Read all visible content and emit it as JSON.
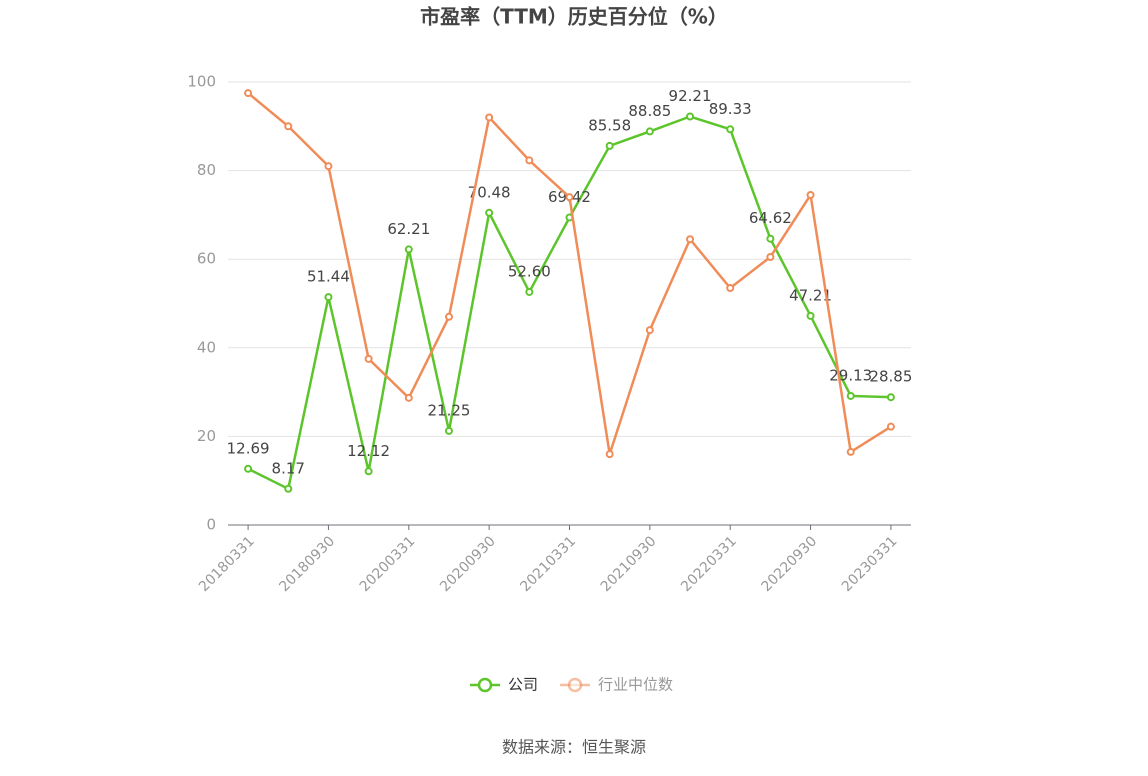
{
  "chart_data": {
    "type": "line",
    "title": "市盈率（TTM）历史百分位（%）",
    "categories": [
      "20180331",
      null,
      "20180930",
      null,
      "20200331",
      null,
      "20200930",
      null,
      "20210331",
      null,
      "20210930",
      null,
      "20220331",
      null,
      "20220930",
      null,
      "20230331"
    ],
    "series": [
      {
        "name": "公司",
        "color": "#5dc52c",
        "values": [
          12.69,
          8.17,
          51.44,
          12.12,
          62.21,
          21.25,
          70.48,
          52.6,
          69.42,
          85.58,
          88.85,
          92.21,
          89.33,
          64.62,
          47.21,
          29.13,
          28.85
        ],
        "value_labels": [
          "12.69",
          "8.17",
          "51.44",
          "12.12",
          "62.21",
          "21.25",
          "70.48",
          "52.60",
          "69.42",
          "85.58",
          "88.85",
          "92.21",
          "89.33",
          "64.62",
          "47.21",
          "29.13",
          "28.85"
        ]
      },
      {
        "name": "行业中位数",
        "color": "#f08c58",
        "values": [
          97.5,
          90,
          81,
          37.5,
          28.7,
          47,
          92,
          82.3,
          74,
          16,
          44,
          64.5,
          53.5,
          60.5,
          74.5,
          16.5,
          22.2
        ]
      }
    ],
    "ylim": [
      0,
      100
    ],
    "yticks": [
      0,
      20,
      40,
      60,
      80,
      100
    ],
    "grid": true,
    "legend": "bottom",
    "source": "数据来源：恒生聚源"
  }
}
